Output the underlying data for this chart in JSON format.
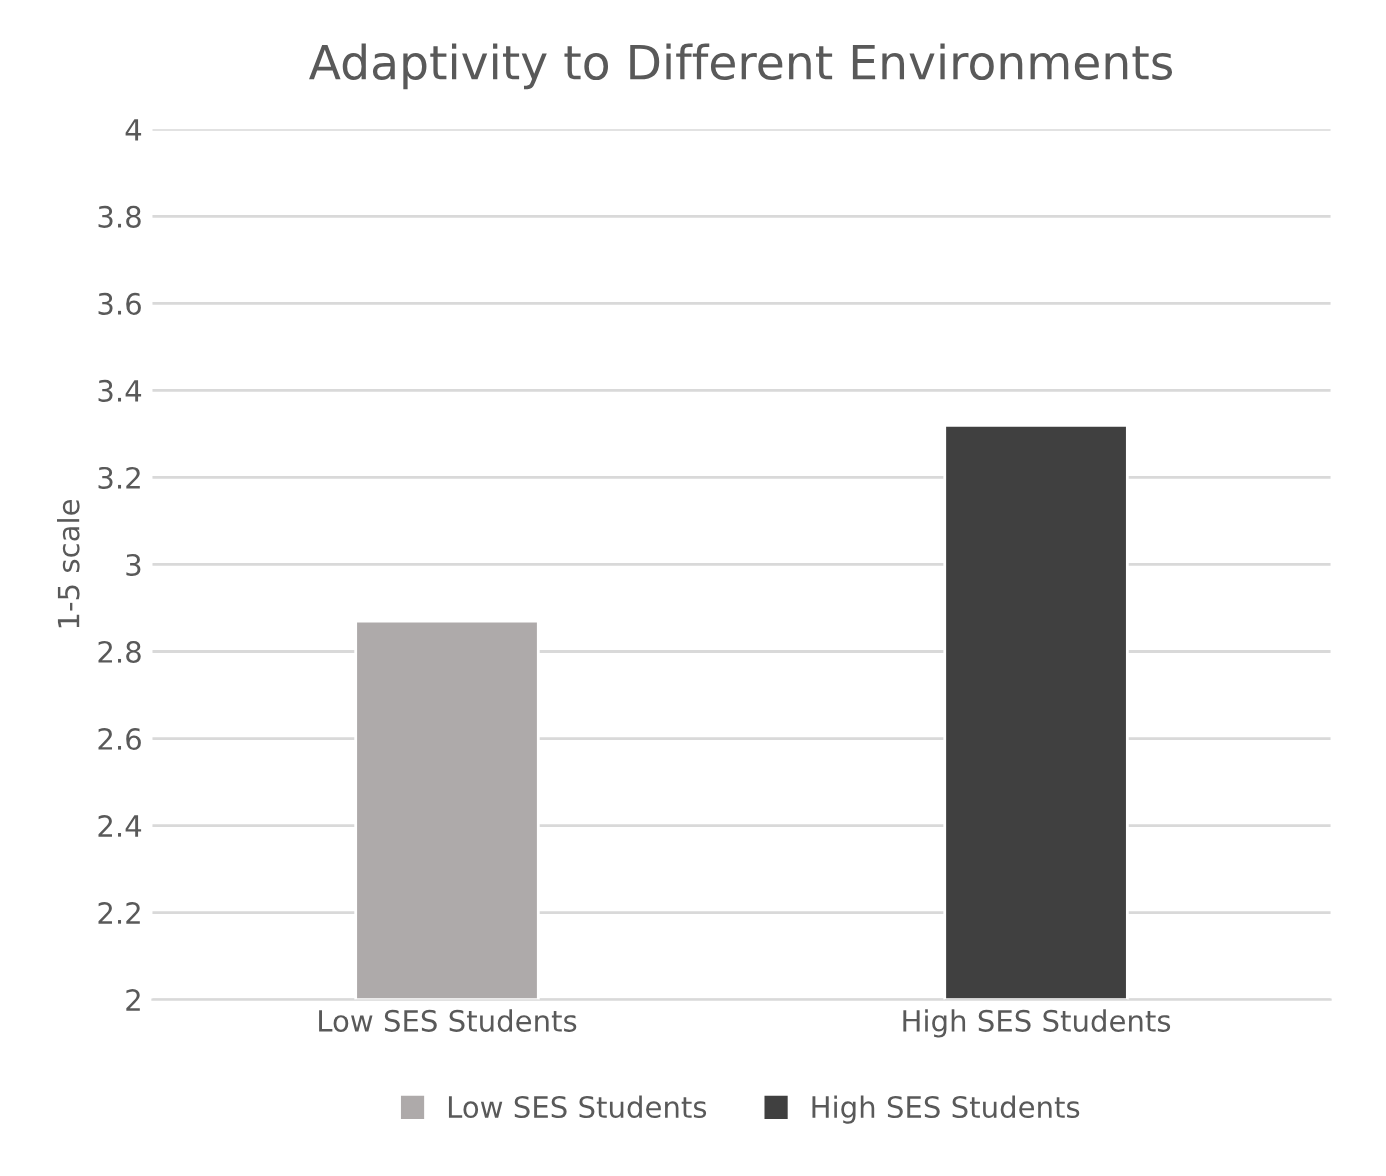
{
  "chart_data": {
    "type": "bar",
    "title": "Adaptivity to Different Environments",
    "ylabel": "1-5 scale",
    "categories": [
      "Low SES Students",
      "High SES Students"
    ],
    "series": [
      {
        "name": "Low SES Students",
        "color": "#aeaaaa",
        "values": [
          2.87,
          null
        ]
      },
      {
        "name": "High SES Students",
        "color": "#404040",
        "values": [
          null,
          3.32
        ]
      }
    ],
    "ylim": [
      2,
      4
    ],
    "yticks": [
      2,
      2.2,
      2.4,
      2.6,
      2.8,
      3,
      3.2,
      3.4,
      3.6,
      3.8,
      4
    ],
    "grid": "y",
    "legend": "bottom"
  }
}
